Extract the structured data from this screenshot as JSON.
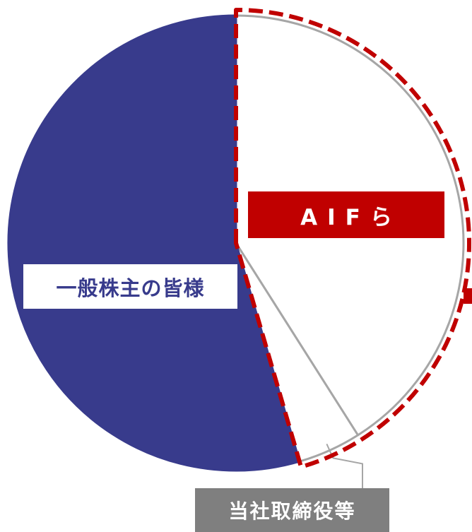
{
  "chart_data": {
    "type": "pie",
    "unit": "%",
    "slices": [
      {
        "name": "AIFら",
        "value": 41.0,
        "fill": "#ffffff",
        "stroke": "#a6a6a6",
        "label_bg": "#c00000",
        "label_color": "#ffffff"
      },
      {
        "name": "当社取締役等",
        "value": 4.5,
        "fill": "#ffffff",
        "stroke": "#a6a6a6",
        "label_bg": "#7f7f7f",
        "label_color": "#ffffff"
      },
      {
        "name": "一般株主の皆様",
        "value": 54.5,
        "fill": "#383b8c",
        "stroke": "#383b8c",
        "label_bg": "#ffffff",
        "label_color": "#383b8c"
      }
    ],
    "start_angle_deg": 0,
    "direction": "clockwise",
    "highlight": {
      "style": "dashed-outline",
      "color": "#c00000",
      "covers": [
        "AIFら",
        "当社取締役等"
      ]
    },
    "legend": "none"
  },
  "colors": {
    "navy": "#383b8c",
    "red": "#c00000",
    "gray": "#7f7f7f",
    "light_gray": "#a6a6a6"
  }
}
